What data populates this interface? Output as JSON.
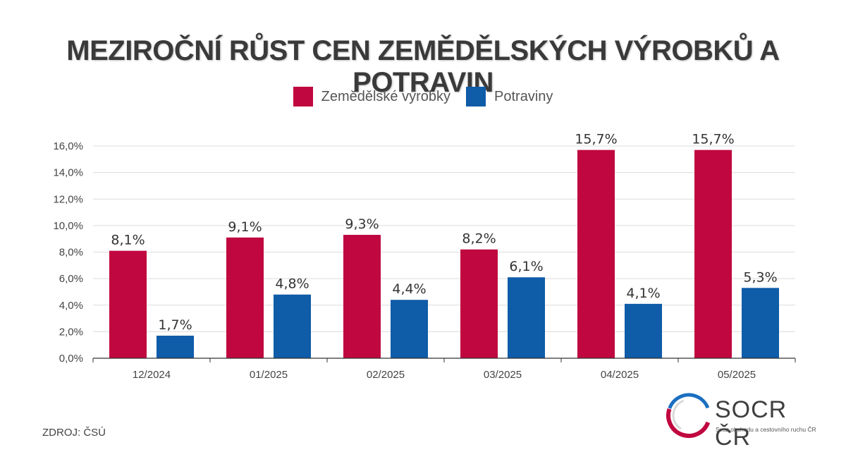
{
  "chart_data": {
    "type": "bar",
    "title": "MEZIROČNÍ RŮST CEN ZEMĚDĚLSKÝCH VÝROBKŮ A POTRAVIN",
    "categories": [
      "12/2024",
      "01/2025",
      "02/2025",
      "03/2025",
      "04/2025",
      "05/2025"
    ],
    "series": [
      {
        "name": "Zemědělské výrobky",
        "color": "#c0073f",
        "values": [
          8.1,
          9.1,
          9.3,
          8.2,
          15.7,
          15.7
        ],
        "labels": [
          "8,1%",
          "9,1%",
          "9,3%",
          "8,2%",
          "15,7%",
          "15,7%"
        ]
      },
      {
        "name": "Potraviny",
        "color": "#0f5ca8",
        "values": [
          1.7,
          4.8,
          4.4,
          6.1,
          4.1,
          5.3
        ],
        "labels": [
          "1,7%",
          "4,8%",
          "4,4%",
          "6,1%",
          "4,1%",
          "5,3%"
        ]
      }
    ],
    "ylim": [
      0,
      16
    ],
    "yticks": [
      0,
      2,
      4,
      6,
      8,
      10,
      12,
      14,
      16
    ],
    "ytick_labels": [
      "0,0%",
      "2,0%",
      "4,0%",
      "6,0%",
      "8,0%",
      "10,0%",
      "12,0%",
      "14,0%",
      "16,0%"
    ],
    "xlabel": "",
    "ylabel": "",
    "grid": true,
    "legend_position": "top-center"
  },
  "source": "ZDROJ: ČSÚ",
  "logo": {
    "name": "SOCR ČR",
    "subtitle": "Svaz obchodu a cestovního ruchu ČR"
  }
}
